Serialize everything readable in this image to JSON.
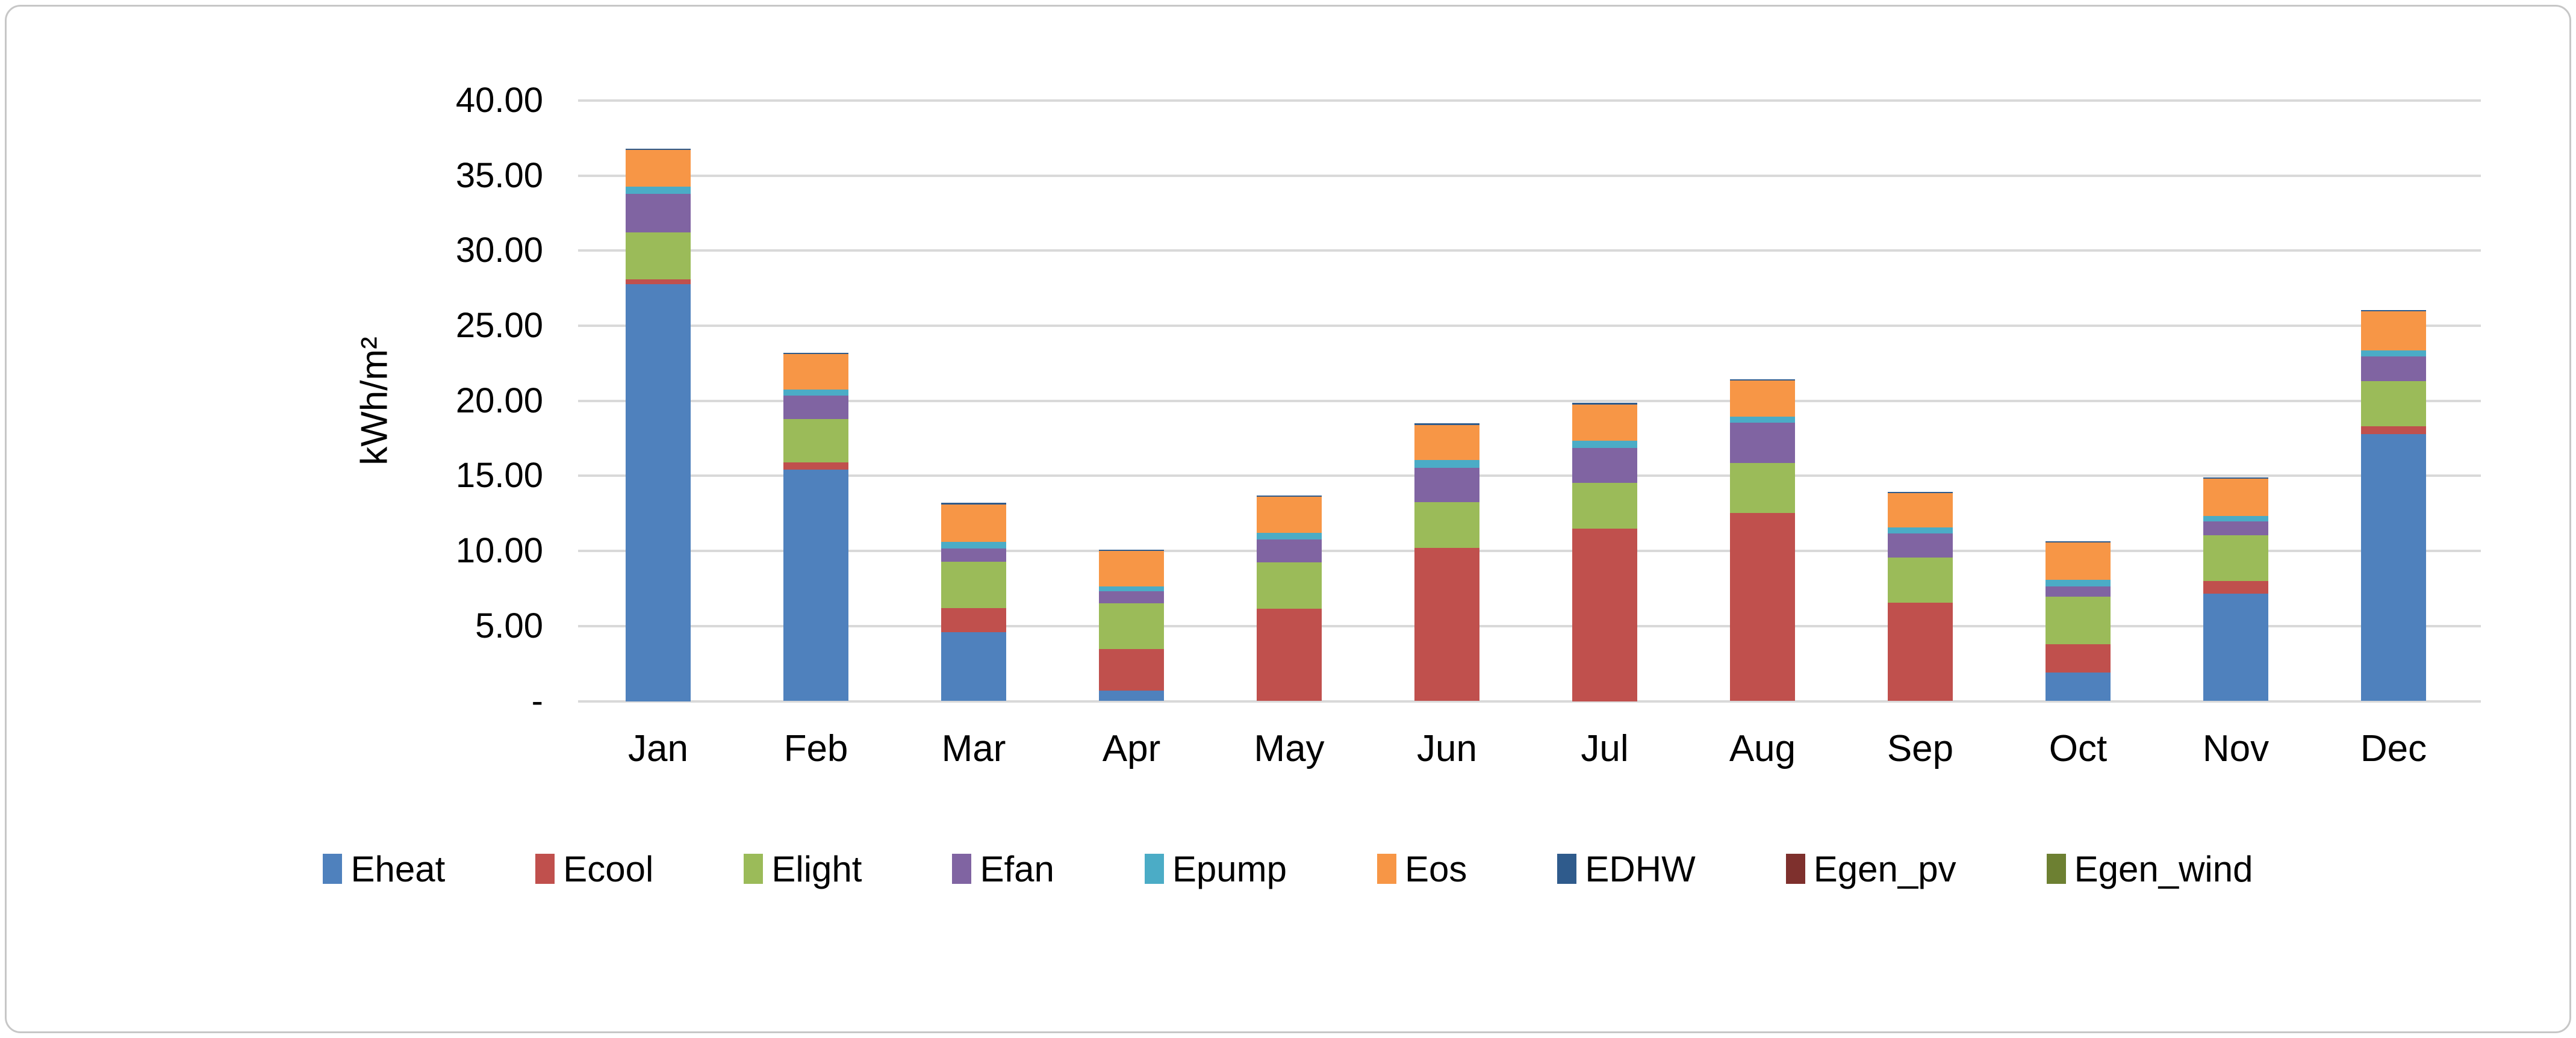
{
  "chart_data": {
    "type": "bar",
    "stacked": true,
    "title": "",
    "xlabel": "",
    "ylabel": "kWh/m²",
    "ylim": [
      0,
      40
    ],
    "grid": "horizontal",
    "legend_position": "bottom",
    "categories": [
      "Jan",
      "Feb",
      "Mar",
      "Apr",
      "May",
      "Jun",
      "Jul",
      "Aug",
      "Sep",
      "Oct",
      "Nov",
      "Dec"
    ],
    "y_ticks": [
      {
        "value": 40,
        "label": "40.00"
      },
      {
        "value": 35,
        "label": "35.00"
      },
      {
        "value": 30,
        "label": "30.00"
      },
      {
        "value": 25,
        "label": "25.00"
      },
      {
        "value": 20,
        "label": "20.00"
      },
      {
        "value": 15,
        "label": "15.00"
      },
      {
        "value": 10,
        "label": "10.00"
      },
      {
        "value": 5,
        "label": "5.00"
      },
      {
        "value": 0,
        "label": "-"
      }
    ],
    "series": [
      {
        "name": "Eheat",
        "color": "#4F81BD",
        "values": [
          27.75,
          15.4,
          4.6,
          0.7,
          0,
          0,
          0,
          0,
          0,
          1.9,
          7.15,
          17.8
        ]
      },
      {
        "name": "Ecool",
        "color": "#C0504D",
        "values": [
          0.35,
          0.5,
          1.6,
          2.75,
          6.15,
          10.2,
          11.5,
          12.55,
          6.55,
          1.9,
          0.85,
          0.5
        ]
      },
      {
        "name": "Elight",
        "color": "#9BBB59",
        "values": [
          3.1,
          2.9,
          3.1,
          3.05,
          3.1,
          3.05,
          3.05,
          3.3,
          3.0,
          3.15,
          3.05,
          3.0
        ]
      },
      {
        "name": "Efan",
        "color": "#8064A2",
        "values": [
          2.6,
          1.55,
          0.85,
          0.8,
          1.5,
          2.3,
          2.3,
          2.7,
          1.6,
          0.7,
          0.9,
          1.65
        ]
      },
      {
        "name": "Epump",
        "color": "#4BACC6",
        "values": [
          0.45,
          0.4,
          0.45,
          0.35,
          0.45,
          0.5,
          0.5,
          0.4,
          0.4,
          0.45,
          0.4,
          0.4
        ]
      },
      {
        "name": "Eos",
        "color": "#F79646",
        "values": [
          2.45,
          2.35,
          2.5,
          2.35,
          2.4,
          2.35,
          2.4,
          2.4,
          2.3,
          2.45,
          2.45,
          2.6
        ]
      },
      {
        "name": "EDHW",
        "color": "#2F5B8C",
        "values": [
          0.1,
          0.1,
          0.1,
          0.1,
          0.1,
          0.1,
          0.1,
          0.1,
          0.1,
          0.1,
          0.1,
          0.1
        ]
      },
      {
        "name": "Egen_pv",
        "color": "#7E302D",
        "values": [
          0,
          0,
          0,
          0,
          0,
          0,
          0,
          0,
          0,
          0,
          0,
          0
        ]
      },
      {
        "name": "Egen_wind",
        "color": "#6D8032",
        "values": [
          0,
          0,
          0,
          0,
          0,
          0,
          0,
          0,
          0,
          0,
          0,
          0
        ]
      }
    ],
    "totals": [
      36.8,
      23.2,
      13.2,
      10.1,
      13.7,
      18.5,
      19.85,
      21.45,
      13.95,
      10.65,
      14.9,
      26.05
    ]
  },
  "colors": {
    "gridline": "#D9D9D9",
    "axis_line": "#D9D9D9",
    "frame_border": "#C7C7C7",
    "text": "#000000",
    "background": "#FFFFFF"
  }
}
